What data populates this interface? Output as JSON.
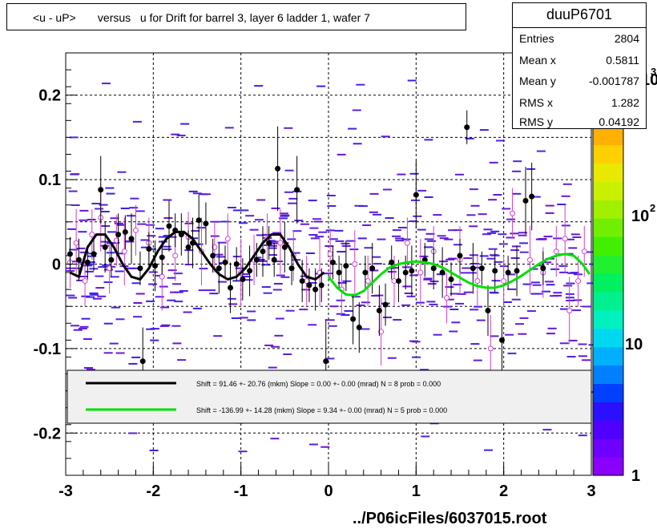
{
  "title": {
    "text": "<u - uP>       versus   u for Drift for barrel 3, layer 6 ladder 1, wafer 7"
  },
  "stats": {
    "name": "duuP6701",
    "rows": [
      {
        "label": "Entries",
        "value": "2804"
      },
      {
        "label": "Mean x",
        "value": "0.5811"
      },
      {
        "label": "Mean y",
        "value": "-0.001787"
      },
      {
        "label": "RMS x",
        "value": "1.282"
      },
      {
        "label": "RMS y",
        "value": "0.04192"
      }
    ]
  },
  "legend": {
    "entries": [
      {
        "text": "Shift =    91.46 +- 20.76 (mkm) Slope =     0.00 +- 0.00 (mrad)  N = 8 prob = 0.000",
        "color": "#000000"
      },
      {
        "text": "Shift =  -136.99 +- 14.28 (mkm) Slope =     9.34 +- 0.00 (mrad)  N = 5 prob = 0.000",
        "color": "#00e000"
      }
    ]
  },
  "colorbar": {
    "tick_labels": [
      "1",
      "10",
      "10",
      "10"
    ],
    "exponents": [
      "2",
      "3"
    ]
  },
  "footer": {
    "text": "../P06icFiles/6037015.root"
  },
  "chart_data": {
    "type": "scatter",
    "xlim": [
      -3,
      3
    ],
    "ylim": [
      -0.25,
      0.25
    ],
    "xticks": [
      -3,
      -2,
      -1,
      0,
      1,
      2,
      3
    ],
    "xtick_labels": [
      "-3",
      "-2",
      "-1",
      "0",
      "1",
      "2",
      "3"
    ],
    "yticks": [
      -0.2,
      -0.1,
      0,
      0.1,
      0.2
    ],
    "ytick_labels": [
      "-0.2",
      "-0.1",
      "0",
      "0.1",
      "0.2"
    ],
    "grid": true,
    "zlim": [
      1,
      1000
    ],
    "log_z": true,
    "series": [
      {
        "kind": "profile-black",
        "points": [
          {
            "x": -2.95,
            "y": 0.012,
            "e": 0.02
          },
          {
            "x": -2.85,
            "y": 0.005,
            "e": 0.025
          },
          {
            "x": -2.75,
            "y": 0.002,
            "e": 0.02
          },
          {
            "x": -2.68,
            "y": 0.012,
            "e": 0.02
          },
          {
            "x": -2.6,
            "y": 0.088,
            "e": 0.04
          },
          {
            "x": -2.55,
            "y": 0.02,
            "e": 0.03
          },
          {
            "x": -2.48,
            "y": 0.005,
            "e": 0.02
          },
          {
            "x": -2.4,
            "y": 0.035,
            "e": 0.025
          },
          {
            "x": -2.32,
            "y": 0.038,
            "e": 0.02
          },
          {
            "x": -2.25,
            "y": 0.03,
            "e": 0.03
          },
          {
            "x": -2.15,
            "y": -0.005,
            "e": 0.02
          },
          {
            "x": -2.12,
            "y": -0.115,
            "e": 0.04
          },
          {
            "x": -2.05,
            "y": 0.018,
            "e": 0.02
          },
          {
            "x": -1.98,
            "y": -0.002,
            "e": 0.03
          },
          {
            "x": -1.9,
            "y": 0.008,
            "e": 0.02
          },
          {
            "x": -1.82,
            "y": 0.045,
            "e": 0.03
          },
          {
            "x": -1.75,
            "y": 0.04,
            "e": 0.02
          },
          {
            "x": -1.68,
            "y": 0.035,
            "e": 0.025
          },
          {
            "x": -1.6,
            "y": 0.02,
            "e": 0.02
          },
          {
            "x": -1.55,
            "y": 0.025,
            "e": 0.03
          },
          {
            "x": -1.48,
            "y": 0.052,
            "e": 0.03
          },
          {
            "x": -1.4,
            "y": 0.048,
            "e": 0.025
          },
          {
            "x": -1.32,
            "y": 0.01,
            "e": 0.02
          },
          {
            "x": -1.25,
            "y": -0.005,
            "e": 0.03
          },
          {
            "x": -1.18,
            "y": 0.002,
            "e": 0.02
          },
          {
            "x": -1.12,
            "y": -0.028,
            "e": 0.03
          },
          {
            "x": -1.05,
            "y": 0.0,
            "e": 0.02
          },
          {
            "x": -0.98,
            "y": -0.018,
            "e": 0.025
          },
          {
            "x": -0.9,
            "y": -0.008,
            "e": 0.03
          },
          {
            "x": -0.82,
            "y": 0.005,
            "e": 0.02
          },
          {
            "x": -0.75,
            "y": 0.015,
            "e": 0.03
          },
          {
            "x": -0.68,
            "y": 0.025,
            "e": 0.02
          },
          {
            "x": -0.62,
            "y": 0.005,
            "e": 0.02
          },
          {
            "x": -0.58,
            "y": 0.113,
            "e": 0.05
          },
          {
            "x": -0.5,
            "y": 0.02,
            "e": 0.03
          },
          {
            "x": -0.42,
            "y": -0.005,
            "e": 0.02
          },
          {
            "x": -0.36,
            "y": 0.088,
            "e": 0.04
          },
          {
            "x": -0.3,
            "y": -0.02,
            "e": 0.025
          },
          {
            "x": -0.22,
            "y": -0.025,
            "e": 0.02
          },
          {
            "x": -0.15,
            "y": -0.03,
            "e": 0.025
          },
          {
            "x": -0.08,
            "y": -0.025,
            "e": 0.02
          },
          {
            "x": -0.03,
            "y": -0.115,
            "e": 0.05
          },
          {
            "x": 0.05,
            "y": 0.002,
            "e": 0.02
          },
          {
            "x": 0.12,
            "y": -0.01,
            "e": 0.02
          },
          {
            "x": 0.2,
            "y": -0.002,
            "e": 0.03
          },
          {
            "x": 0.28,
            "y": -0.065,
            "e": 0.03
          },
          {
            "x": 0.35,
            "y": -0.075,
            "e": 0.03
          },
          {
            "x": 0.42,
            "y": -0.01,
            "e": 0.02
          },
          {
            "x": 0.5,
            "y": -0.005,
            "e": 0.03
          },
          {
            "x": 0.58,
            "y": -0.055,
            "e": 0.03
          },
          {
            "x": 0.65,
            "y": -0.048,
            "e": 0.025
          },
          {
            "x": 0.72,
            "y": 0.002,
            "e": 0.02
          },
          {
            "x": 0.8,
            "y": -0.02,
            "e": 0.025
          },
          {
            "x": 0.88,
            "y": -0.01,
            "e": 0.02
          },
          {
            "x": 0.95,
            "y": -0.008,
            "e": 0.03
          },
          {
            "x": 1.0,
            "y": 0.082,
            "e": 0.04
          },
          {
            "x": 1.1,
            "y": 0.005,
            "e": 0.02
          },
          {
            "x": 1.2,
            "y": -0.005,
            "e": 0.025
          },
          {
            "x": 1.3,
            "y": -0.01,
            "e": 0.03
          },
          {
            "x": 1.4,
            "y": -0.018,
            "e": 0.02
          },
          {
            "x": 1.5,
            "y": 0.01,
            "e": 0.02
          },
          {
            "x": 1.58,
            "y": 0.162,
            "e": 0.02
          },
          {
            "x": 1.65,
            "y": -0.005,
            "e": 0.03
          },
          {
            "x": 1.75,
            "y": -0.005,
            "e": 0.02
          },
          {
            "x": 1.82,
            "y": -0.055,
            "e": 0.03
          },
          {
            "x": 1.9,
            "y": -0.008,
            "e": 0.025
          },
          {
            "x": 1.98,
            "y": -0.09,
            "e": 0.04
          },
          {
            "x": 2.05,
            "y": -0.01,
            "e": 0.02
          },
          {
            "x": 2.15,
            "y": -0.008,
            "e": 0.03
          },
          {
            "x": 2.25,
            "y": 0.075,
            "e": 0.04
          },
          {
            "x": 2.32,
            "y": 0.08,
            "e": 0.04
          },
          {
            "x": 2.45,
            "y": -0.005,
            "e": 0.02
          }
        ]
      },
      {
        "kind": "profile-magenta",
        "points": [
          {
            "x": -2.95,
            "y": 0.002,
            "e": 0.03
          },
          {
            "x": -2.88,
            "y": 0.025,
            "e": 0.04
          },
          {
            "x": -2.78,
            "y": -0.02,
            "e": 0.03
          },
          {
            "x": -2.7,
            "y": 0.035,
            "e": 0.03
          },
          {
            "x": -2.6,
            "y": 0.055,
            "e": 0.04
          },
          {
            "x": -2.5,
            "y": -0.005,
            "e": 0.03
          },
          {
            "x": -2.42,
            "y": 0.028,
            "e": 0.03
          },
          {
            "x": -2.33,
            "y": 0.015,
            "e": 0.04
          },
          {
            "x": -2.2,
            "y": 0.04,
            "e": 0.03
          },
          {
            "x": -2.05,
            "y": 0.025,
            "e": 0.03
          },
          {
            "x": -1.9,
            "y": -0.015,
            "e": 0.04
          },
          {
            "x": -1.75,
            "y": 0.01,
            "e": 0.03
          },
          {
            "x": -1.6,
            "y": 0.032,
            "e": 0.03
          },
          {
            "x": -1.45,
            "y": 0.015,
            "e": 0.04
          },
          {
            "x": -1.3,
            "y": 0.02,
            "e": 0.03
          },
          {
            "x": -1.15,
            "y": 0.03,
            "e": 0.03
          },
          {
            "x": -1.0,
            "y": -0.01,
            "e": 0.04
          },
          {
            "x": -0.85,
            "y": 0.005,
            "e": 0.03
          },
          {
            "x": -0.7,
            "y": 0.03,
            "e": 0.03
          },
          {
            "x": -0.55,
            "y": 0.025,
            "e": 0.04
          },
          {
            "x": -0.4,
            "y": 0.01,
            "e": 0.03
          },
          {
            "x": -0.25,
            "y": -0.02,
            "e": 0.03
          },
          {
            "x": -0.1,
            "y": -0.01,
            "e": 0.04
          },
          {
            "x": 0.02,
            "y": 0.012,
            "e": 0.03
          },
          {
            "x": 0.15,
            "y": -0.03,
            "e": 0.03
          },
          {
            "x": 0.3,
            "y": 0.0,
            "e": 0.04
          },
          {
            "x": 0.45,
            "y": -0.02,
            "e": 0.03
          },
          {
            "x": 0.6,
            "y": -0.08,
            "e": 0.04
          },
          {
            "x": 0.75,
            "y": -0.02,
            "e": 0.03
          },
          {
            "x": 0.9,
            "y": 0.025,
            "e": 0.03
          },
          {
            "x": 1.05,
            "y": -0.01,
            "e": 0.04
          },
          {
            "x": 1.2,
            "y": 0.015,
            "e": 0.03
          },
          {
            "x": 1.35,
            "y": -0.04,
            "e": 0.03
          },
          {
            "x": 1.5,
            "y": 0.005,
            "e": 0.04
          },
          {
            "x": 1.7,
            "y": -0.02,
            "e": 0.03
          },
          {
            "x": 1.85,
            "y": -0.1,
            "e": 0.04
          },
          {
            "x": 2.0,
            "y": -0.02,
            "e": 0.03
          },
          {
            "x": 2.1,
            "y": 0.06,
            "e": 0.03
          },
          {
            "x": 2.3,
            "y": 0.005,
            "e": 0.04
          },
          {
            "x": 2.45,
            "y": -0.01,
            "e": 0.03
          },
          {
            "x": 2.6,
            "y": 0.015,
            "e": 0.03
          },
          {
            "x": 2.7,
            "y": 0.03,
            "e": 0.04
          },
          {
            "x": 2.75,
            "y": -0.055,
            "e": 0.04
          },
          {
            "x": 2.85,
            "y": -0.02,
            "e": 0.03
          },
          {
            "x": 2.92,
            "y": 0.015,
            "e": 0.03
          }
        ]
      },
      {
        "kind": "fit-black",
        "x": [
          -2.95,
          -2.85,
          -2.75,
          -2.65,
          -2.55,
          -2.45,
          -2.35,
          -2.25,
          -2.15,
          -2.05,
          -1.95,
          -1.85,
          -1.75,
          -1.65,
          -1.55,
          -1.45,
          -1.35,
          -1.25,
          -1.15,
          -1.05,
          -0.95,
          -0.85,
          -0.75,
          -0.65,
          -0.55,
          -0.45,
          -0.35,
          -0.25,
          -0.15,
          -0.05
        ],
        "y": [
          -0.01,
          -0.015,
          0.02,
          0.035,
          0.035,
          0.02,
          0.0,
          -0.015,
          -0.018,
          -0.005,
          0.015,
          0.03,
          0.038,
          0.038,
          0.03,
          0.015,
          0.0,
          -0.012,
          -0.018,
          -0.015,
          -0.005,
          0.01,
          0.025,
          0.035,
          0.035,
          0.02,
          0.0,
          -0.015,
          -0.018,
          -0.01
        ]
      },
      {
        "kind": "fit-green",
        "x": [
          0.0,
          0.1,
          0.2,
          0.3,
          0.4,
          0.5,
          0.6,
          0.7,
          0.8,
          0.9,
          1.0,
          1.1,
          1.2,
          1.3,
          1.4,
          1.5,
          1.6,
          1.7,
          1.8,
          1.9,
          2.0,
          2.1,
          2.2,
          2.3,
          2.4,
          2.5,
          2.6,
          2.7,
          2.8,
          2.9,
          2.98
        ],
        "y": [
          -0.015,
          -0.028,
          -0.036,
          -0.037,
          -0.032,
          -0.022,
          -0.012,
          -0.004,
          0.0,
          0.002,
          0.003,
          0.002,
          0.0,
          -0.004,
          -0.01,
          -0.016,
          -0.022,
          -0.026,
          -0.028,
          -0.028,
          -0.025,
          -0.02,
          -0.014,
          -0.007,
          0.0,
          0.006,
          0.01,
          0.012,
          0.01,
          0.0,
          -0.012
        ]
      }
    ]
  }
}
